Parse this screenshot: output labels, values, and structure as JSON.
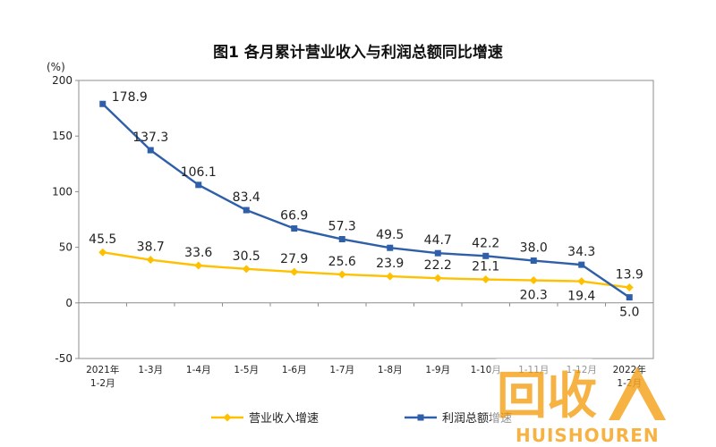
{
  "chart_data": {
    "type": "line",
    "title": "图1  各月累计营业收入与利润总额同比增速",
    "unit_label": "(%)",
    "categories": [
      [
        "2021年",
        "1-2月"
      ],
      [
        "1-3月"
      ],
      [
        "1-4月"
      ],
      [
        "1-5月"
      ],
      [
        "1-6月"
      ],
      [
        "1-7月"
      ],
      [
        "1-8月"
      ],
      [
        "1-9月"
      ],
      [
        "1-10月"
      ],
      [
        "1-11月"
      ],
      [
        "1-12月"
      ],
      [
        "2022年",
        "1-2月"
      ]
    ],
    "ylim": [
      -50,
      200
    ],
    "yticks": [
      -50,
      0,
      50,
      100,
      150,
      200
    ],
    "series": [
      {
        "name": "营业收入增速",
        "color": "#FFC000",
        "marker": "diamond",
        "values": [
          45.5,
          38.7,
          33.6,
          30.5,
          27.9,
          25.6,
          23.9,
          22.2,
          21.1,
          20.3,
          19.4,
          13.9
        ],
        "labels": [
          "45.5",
          "38.7",
          "33.6",
          "30.5",
          "27.9",
          "25.6",
          "23.9",
          "22.2",
          "21.1",
          "20.3",
          "19.4",
          "13.9"
        ],
        "label_side": [
          "above",
          "above",
          "above",
          "above",
          "above",
          "above",
          "above",
          "above",
          "above",
          "below",
          "below",
          "above"
        ]
      },
      {
        "name": "利润总额增速",
        "color": "#2E5FA8",
        "marker": "square",
        "values": [
          178.9,
          137.3,
          106.1,
          83.4,
          66.9,
          57.3,
          49.5,
          44.7,
          42.2,
          38.0,
          34.3,
          5.0
        ],
        "labels": [
          "178.9",
          "137.3",
          "106.1",
          "83.4",
          "66.9",
          "57.3",
          "49.5",
          "44.7",
          "42.2",
          "38.0",
          "34.3",
          "5.0"
        ],
        "label_side": [
          "right",
          "above",
          "above",
          "above",
          "above",
          "above",
          "above",
          "above",
          "above",
          "above",
          "above",
          "below"
        ]
      }
    ],
    "grid": false,
    "legend_position": "bottom"
  },
  "watermark": {
    "logo_text": "回收",
    "brand": "HUISHOUREN"
  }
}
